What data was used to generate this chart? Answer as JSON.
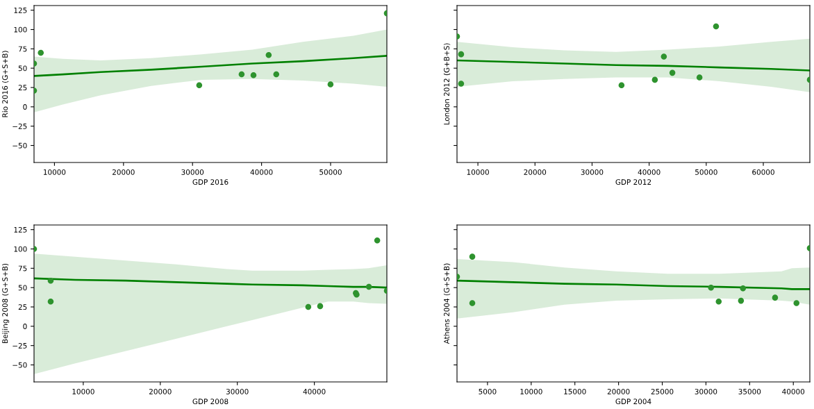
{
  "chart_data": [
    {
      "type": "scatter",
      "xlabel": "GDP 2016",
      "ylabel": "Rio 2016 (G+S+B)",
      "xlim": [
        7040,
        58150
      ],
      "xticks": [
        10000,
        20000,
        30000,
        40000,
        50000
      ],
      "ylim": [
        -72,
        131
      ],
      "yticks": [
        -50,
        -25,
        0,
        25,
        50,
        75,
        100,
        125
      ],
      "series": [
        {
          "marker": "circle",
          "color": "#2e932e",
          "x": [
            7040,
            7040,
            8020,
            30970,
            37110,
            38830,
            41030,
            42130,
            49990,
            58150
          ],
          "values": [
            56,
            21,
            70,
            28,
            42,
            41,
            67,
            42,
            29,
            121
          ]
        },
        {
          "type": "line",
          "color": "#008000",
          "x": [
            7040,
            11210,
            16700,
            24010,
            31330,
            38650,
            45970,
            53290,
            58150
          ],
          "values": [
            40,
            42,
            45,
            48,
            52,
            56,
            59,
            63,
            66
          ],
          "upper": [
            65,
            62,
            60,
            63,
            68,
            74,
            84,
            92,
            100
          ],
          "lower": [
            -7,
            3,
            15,
            27,
            35,
            36,
            34,
            30,
            26
          ]
        }
      ]
    },
    {
      "type": "scatter",
      "xlabel": "GDP 2012",
      "ylabel": "London 2012 (G+B+S)",
      "xlim": [
        6340,
        68150
      ],
      "xticks": [
        10000,
        20000,
        30000,
        40000,
        50000,
        60000
      ],
      "ylim": [
        -72,
        131
      ],
      "yticks": [
        -50,
        -25,
        0,
        25,
        50,
        75,
        100,
        125
      ],
      "tick_labels": "x",
      "series": [
        {
          "marker": "circle",
          "color": "#2e932e",
          "x": [
            6340,
            7060,
            7060,
            35160,
            41000,
            42580,
            44070,
            48820,
            51720,
            68150
          ],
          "values": [
            91,
            68,
            30,
            28,
            35,
            65,
            44,
            38,
            104,
            35
          ]
        },
        {
          "type": "line",
          "color": "#008000",
          "x": [
            6340,
            16110,
            25160,
            34210,
            43260,
            52310,
            61360,
            68150
          ],
          "values": [
            60,
            58,
            56,
            54,
            53,
            51,
            49,
            47
          ],
          "upper": [
            84,
            77,
            73,
            71,
            74,
            78,
            84,
            88
          ],
          "lower": [
            26,
            33,
            36,
            38,
            38,
            33,
            26,
            19
          ]
        }
      ]
    },
    {
      "type": "scatter",
      "xlabel": "GDP 2008",
      "ylabel": "Beijing 2008 (G+S+B)",
      "xlim": [
        3610,
        49410
      ],
      "xticks": [
        10000,
        20000,
        30000,
        40000
      ],
      "ylim": [
        -72,
        131
      ],
      "yticks": [
        -50,
        -25,
        0,
        25,
        50,
        75,
        100,
        125
      ],
      "series": [
        {
          "marker": "circle",
          "color": "#2e932e",
          "x": [
            3610,
            5770,
            5770,
            39210,
            40750,
            45380,
            45480,
            47080,
            48160,
            49410
          ],
          "values": [
            100,
            59,
            32,
            25,
            26,
            43,
            41,
            51,
            111,
            46
          ]
        },
        {
          "type": "line",
          "color": "#008000",
          "x": [
            3610,
            8980,
            15540,
            22100,
            28660,
            31930,
            38490,
            41770,
            45050,
            47020,
            49410
          ],
          "values": [
            62,
            60,
            59,
            57,
            55,
            54,
            53,
            52,
            51,
            51,
            50
          ],
          "upper": [
            94,
            90,
            85,
            80,
            74,
            72,
            72,
            73,
            74,
            75,
            79
          ],
          "lower": [
            -62,
            -48,
            -32,
            -16,
            0,
            8,
            24,
            32,
            32,
            30,
            29
          ]
        }
      ]
    },
    {
      "type": "scatter",
      "xlabel": "GDP 2004",
      "ylabel": "Athens 2004 (G+S+B)",
      "xlim": [
        1510,
        41890
      ],
      "xticks": [
        5000,
        10000,
        15000,
        20000,
        25000,
        30000,
        35000,
        40000
      ],
      "ylim": [
        -72,
        131
      ],
      "yticks": [
        -50,
        -25,
        0,
        25,
        50,
        75,
        100,
        125
      ],
      "tick_labels": "x",
      "series": [
        {
          "marker": "circle",
          "color": "#2e932e",
          "x": [
            1510,
            3260,
            3260,
            30580,
            31460,
            34010,
            34240,
            37910,
            40360,
            41890
          ],
          "values": [
            64,
            90,
            30,
            50,
            32,
            33,
            49,
            37,
            30,
            101
          ]
        },
        {
          "type": "line",
          "color": "#008000",
          "x": [
            1510,
            7900,
            13810,
            19730,
            25640,
            31550,
            38650,
            39830,
            41890
          ],
          "values": [
            59,
            57,
            55,
            54,
            52,
            51,
            49,
            48,
            48
          ],
          "upper": [
            87,
            83,
            76,
            71,
            68,
            68,
            71,
            75,
            76
          ],
          "lower": [
            10,
            18,
            28,
            33,
            35,
            36,
            33,
            32,
            28
          ]
        }
      ]
    }
  ]
}
